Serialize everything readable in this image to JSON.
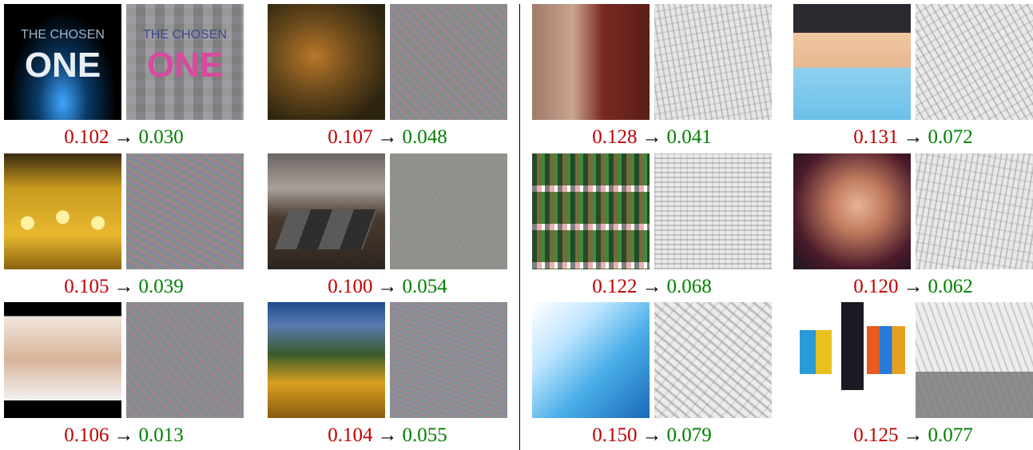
{
  "figure": {
    "arrow": "→",
    "cells": [
      {
        "id": "c1",
        "before": "0.102",
        "after": "0.030",
        "orig_text_1": "THE CHOSEN",
        "orig_text_2": "ONE",
        "pert_text_1": "THE CHOSEN",
        "pert_text_2": "ONE"
      },
      {
        "id": "c2",
        "before": "0.107",
        "after": "0.048"
      },
      {
        "id": "c3",
        "before": "0.128",
        "after": "0.041"
      },
      {
        "id": "c4",
        "before": "0.131",
        "after": "0.072"
      },
      {
        "id": "c5",
        "before": "0.105",
        "after": "0.039"
      },
      {
        "id": "c6",
        "before": "0.100",
        "after": "0.054"
      },
      {
        "id": "c7",
        "before": "0.122",
        "after": "0.068"
      },
      {
        "id": "c8",
        "before": "0.120",
        "after": "0.062"
      },
      {
        "id": "c9",
        "before": "0.106",
        "after": "0.013"
      },
      {
        "id": "c10",
        "before": "0.104",
        "after": "0.055"
      },
      {
        "id": "c11",
        "before": "0.150",
        "after": "0.079"
      },
      {
        "id": "c12",
        "before": "0.125",
        "after": "0.077"
      }
    ]
  },
  "colors": {
    "before": "#c00000",
    "after": "#008000"
  }
}
